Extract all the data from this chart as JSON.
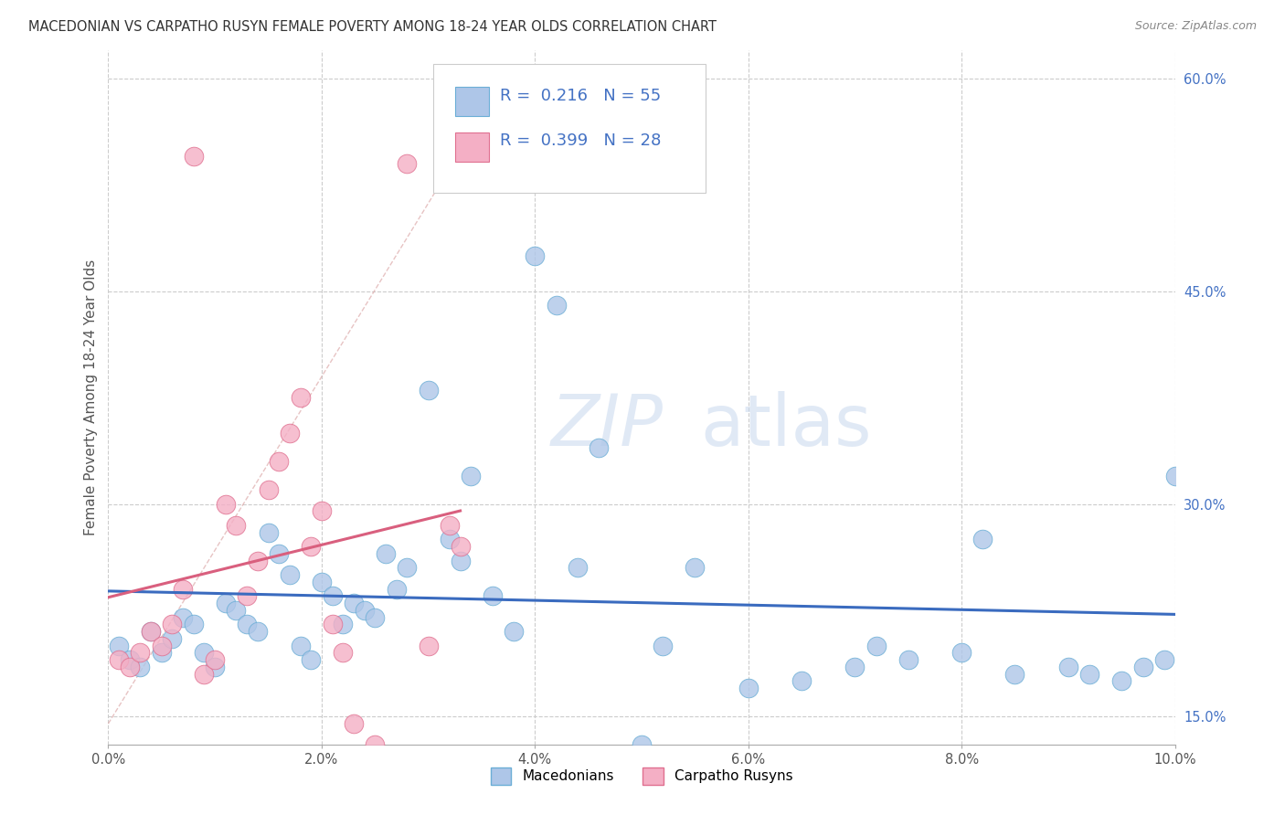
{
  "title": "MACEDONIAN VS CARPATHO RUSYN FEMALE POVERTY AMONG 18-24 YEAR OLDS CORRELATION CHART",
  "source": "Source: ZipAtlas.com",
  "ylabel": "Female Poverty Among 18-24 Year Olds",
  "xlim": [
    0.0,
    0.1
  ],
  "ylim": [
    0.13,
    0.62
  ],
  "xtick_vals": [
    0.0,
    0.02,
    0.04,
    0.06,
    0.08,
    0.1
  ],
  "ytick_vals": [
    0.15,
    0.3,
    0.45,
    0.6
  ],
  "ytick_labels": [
    "15.0%",
    "30.0%",
    "45.0%",
    "60.0%"
  ],
  "xtick_labels": [
    "0.0%",
    "2.0%",
    "4.0%",
    "6.0%",
    "8.0%",
    "10.0%"
  ],
  "macedonian_color": "#aec6e8",
  "carpatho_color": "#f4afc5",
  "macedonian_edge": "#6baed6",
  "carpatho_edge": "#e07090",
  "trend_mac_color": "#3a6bbf",
  "trend_carp_color": "#d95f7e",
  "legend_R_mac": "0.216",
  "legend_N_mac": "55",
  "legend_R_carp": "0.399",
  "legend_N_carp": "28",
  "background_color": "#ffffff",
  "grid_color": "#cccccc",
  "title_color": "#333333",
  "source_color": "#888888",
  "ylabel_color": "#555555",
  "legend_text_color": "#4472c4",
  "mac_x": [
    0.001,
    0.002,
    0.003,
    0.004,
    0.005,
    0.006,
    0.007,
    0.008,
    0.009,
    0.01,
    0.011,
    0.012,
    0.013,
    0.014,
    0.015,
    0.016,
    0.017,
    0.018,
    0.019,
    0.02,
    0.021,
    0.022,
    0.023,
    0.024,
    0.025,
    0.026,
    0.027,
    0.028,
    0.03,
    0.032,
    0.033,
    0.034,
    0.036,
    0.038,
    0.04,
    0.042,
    0.044,
    0.046,
    0.05,
    0.052,
    0.055,
    0.06,
    0.065,
    0.07,
    0.072,
    0.075,
    0.08,
    0.082,
    0.085,
    0.09,
    0.092,
    0.095,
    0.097,
    0.099,
    0.1
  ],
  "mac_y": [
    0.2,
    0.19,
    0.185,
    0.21,
    0.195,
    0.205,
    0.22,
    0.215,
    0.195,
    0.185,
    0.23,
    0.225,
    0.215,
    0.21,
    0.28,
    0.265,
    0.25,
    0.2,
    0.19,
    0.245,
    0.235,
    0.215,
    0.23,
    0.225,
    0.22,
    0.265,
    0.24,
    0.255,
    0.38,
    0.275,
    0.26,
    0.32,
    0.235,
    0.21,
    0.475,
    0.44,
    0.255,
    0.34,
    0.12,
    0.2,
    0.255,
    0.17,
    0.175,
    0.185,
    0.2,
    0.19,
    0.195,
    0.275,
    0.18,
    0.185,
    0.18,
    0.175,
    0.185,
    0.19,
    0.32
  ],
  "carp_x": [
    0.001,
    0.002,
    0.003,
    0.004,
    0.005,
    0.006,
    0.007,
    0.008,
    0.009,
    0.01,
    0.011,
    0.012,
    0.013,
    0.014,
    0.015,
    0.016,
    0.017,
    0.018,
    0.019,
    0.02,
    0.021,
    0.022,
    0.023,
    0.025,
    0.028,
    0.03,
    0.032,
    0.033
  ],
  "carp_y": [
    0.19,
    0.185,
    0.195,
    0.21,
    0.2,
    0.215,
    0.24,
    0.545,
    0.18,
    0.19,
    0.3,
    0.285,
    0.235,
    0.26,
    0.31,
    0.33,
    0.35,
    0.375,
    0.27,
    0.295,
    0.215,
    0.195,
    0.145,
    0.13,
    0.54,
    0.2,
    0.285,
    0.27
  ]
}
